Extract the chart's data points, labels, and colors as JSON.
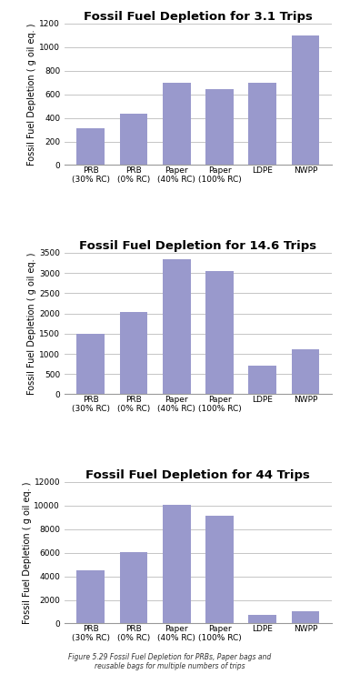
{
  "charts": [
    {
      "title": "Fossil Fuel Depletion for 3.1 Trips",
      "values": [
        310,
        435,
        700,
        645,
        700,
        1100
      ],
      "ylim": [
        0,
        1200
      ],
      "yticks": [
        0,
        200,
        400,
        600,
        800,
        1000,
        1200
      ]
    },
    {
      "title": "Fossil Fuel Depletion for 14.6 Trips",
      "values": [
        1500,
        2030,
        3330,
        3050,
        700,
        1120
      ],
      "ylim": [
        0,
        3500
      ],
      "yticks": [
        0,
        500,
        1000,
        1500,
        2000,
        2500,
        3000,
        3500
      ]
    },
    {
      "title": "Fossil Fuel Depletion for 44 Trips",
      "values": [
        4500,
        6050,
        10100,
        9150,
        700,
        1050
      ],
      "ylim": [
        0,
        12000
      ],
      "yticks": [
        0,
        2000,
        4000,
        6000,
        8000,
        10000,
        12000
      ]
    }
  ],
  "categories": [
    "PRB\n(30% RC)",
    "PRB\n(0% RC)",
    "Paper\n(40% RC)",
    "Paper\n(100% RC)",
    "LDPE",
    "NWPP"
  ],
  "bar_color": "#9999cc",
  "ylabel": "Fossil Fuel Depletion ( g oil eq. )",
  "bg_color": "#ffffff",
  "grid_color": "#bbbbbb",
  "title_fontsize": 9.5,
  "tick_fontsize": 6.5,
  "ylabel_fontsize": 7,
  "caption": "Figure 5.29 Fossil Fuel Depletion for PRBs, Paper bags and\nreusable bags for multiple numbers of trips"
}
